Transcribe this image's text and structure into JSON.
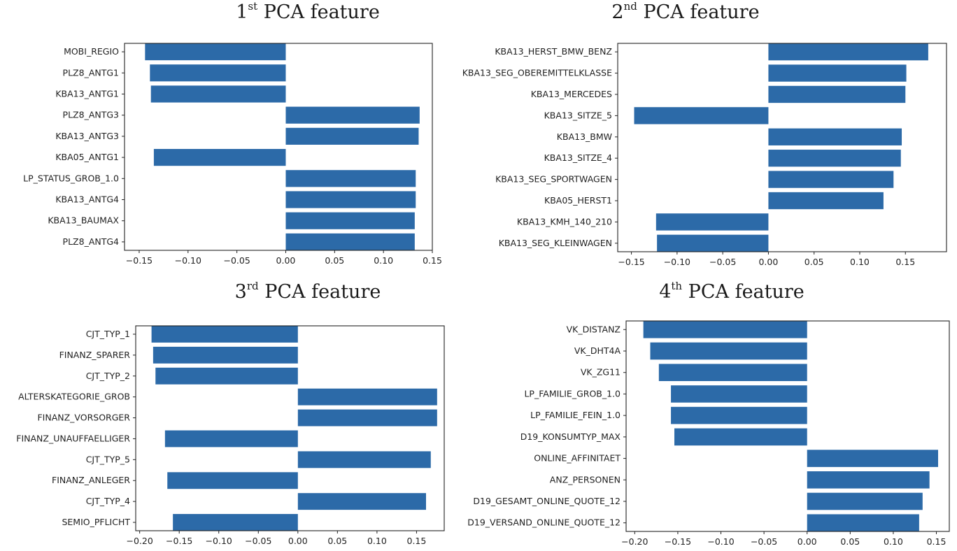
{
  "chart_data": [
    {
      "type": "bar",
      "orientation": "horizontal",
      "title": {
        "num": "1",
        "sup": "st",
        "rest": " PCA feature"
      },
      "categories": [
        "MOBI_REGIO",
        "PLZ8_ANTG1",
        "KBA13_ANTG1",
        "PLZ8_ANTG3",
        "KBA13_ANTG3",
        "KBA05_ANTG1",
        "LP_STATUS_GROB_1.0",
        "KBA13_ANTG4",
        "KBA13_BAUMAX",
        "PLZ8_ANTG4"
      ],
      "values": [
        -0.144,
        -0.139,
        -0.138,
        0.137,
        0.136,
        -0.135,
        0.133,
        0.133,
        0.132,
        0.132
      ],
      "xlim": [
        -0.165,
        0.15
      ],
      "xticks": [
        -0.15,
        -0.1,
        -0.05,
        0.0,
        0.05,
        0.1,
        0.15
      ],
      "xtick_labels": [
        "−0.15",
        "−0.10",
        "−0.05",
        "0.00",
        "0.05",
        "0.10",
        "0.15"
      ],
      "grid": false,
      "bar_color": "#2c6aa8"
    },
    {
      "type": "bar",
      "orientation": "horizontal",
      "title": {
        "num": "2",
        "sup": "nd",
        "rest": " PCA feature"
      },
      "categories": [
        "KBA13_HERST_BMW_BENZ",
        "KBA13_SEG_OBEREMITTELKLASSE",
        "KBA13_MERCEDES",
        "KBA13_SITZE_5",
        "KBA13_BMW",
        "KBA13_SITZE_4",
        "KBA13_SEG_SPORTWAGEN",
        "KBA05_HERST1",
        "KBA13_KMH_140_210",
        "KBA13_SEG_KLEINWAGEN"
      ],
      "values": [
        0.175,
        0.151,
        0.15,
        -0.147,
        0.146,
        0.145,
        0.137,
        0.126,
        -0.123,
        -0.122
      ],
      "xlim": [
        -0.165,
        0.195
      ],
      "xticks": [
        -0.15,
        -0.1,
        -0.05,
        0.0,
        0.05,
        0.1,
        0.15
      ],
      "xtick_labels": [
        "−0.15",
        "−0.10",
        "−0.05",
        "0.00",
        "0.05",
        "0.10",
        "0.15"
      ],
      "grid": false,
      "bar_color": "#2c6aa8"
    },
    {
      "type": "bar",
      "orientation": "horizontal",
      "title": {
        "num": "3",
        "sup": "rd",
        "rest": " PCA feature"
      },
      "categories": [
        "CJT_TYP_1",
        "FINANZ_SPARER",
        "CJT_TYP_2",
        "ALTERSKATEGORIE_GROB",
        "FINANZ_VORSORGER",
        "FINANZ_UNAUFFAELLIGER",
        "CJT_TYP_5",
        "FINANZ_ANLEGER",
        "CJT_TYP_4",
        "SEMIO_PFLICHT"
      ],
      "values": [
        -0.185,
        -0.183,
        -0.18,
        0.176,
        0.176,
        -0.168,
        0.168,
        -0.165,
        0.162,
        -0.158
      ],
      "xlim": [
        -0.205,
        0.185
      ],
      "xticks": [
        -0.2,
        -0.15,
        -0.1,
        -0.05,
        0.0,
        0.05,
        0.1,
        0.15
      ],
      "xtick_labels": [
        "−0.20",
        "−0.15",
        "−0.10",
        "−0.05",
        "0.00",
        "0.05",
        "0.10",
        "0.15"
      ],
      "grid": false,
      "bar_color": "#2c6aa8"
    },
    {
      "type": "bar",
      "orientation": "horizontal",
      "title": {
        "num": "4",
        "sup": "th",
        "rest": " PCA feature"
      },
      "categories": [
        "VK_DISTANZ",
        "VK_DHT4A",
        "VK_ZG11",
        "LP_FAMILIE_GROB_1.0",
        "LP_FAMILIE_FEIN_1.0",
        "D19_KONSUMTYP_MAX",
        "ONLINE_AFFINITAET",
        "ANZ_PERSONEN",
        "D19_GESAMT_ONLINE_QUOTE_12",
        "D19_VERSAND_ONLINE_QUOTE_12"
      ],
      "values": [
        -0.19,
        -0.182,
        -0.172,
        -0.158,
        -0.158,
        -0.154,
        0.152,
        0.142,
        0.134,
        0.13
      ],
      "xlim": [
        -0.21,
        0.165
      ],
      "xticks": [
        -0.2,
        -0.15,
        -0.1,
        -0.05,
        0.0,
        0.05,
        0.1,
        0.15
      ],
      "xtick_labels": [
        "−0.20",
        "−0.15",
        "−0.10",
        "−0.05",
        "0.00",
        "0.05",
        "0.10",
        "0.15"
      ],
      "grid": false,
      "bar_color": "#2c6aa8"
    }
  ]
}
